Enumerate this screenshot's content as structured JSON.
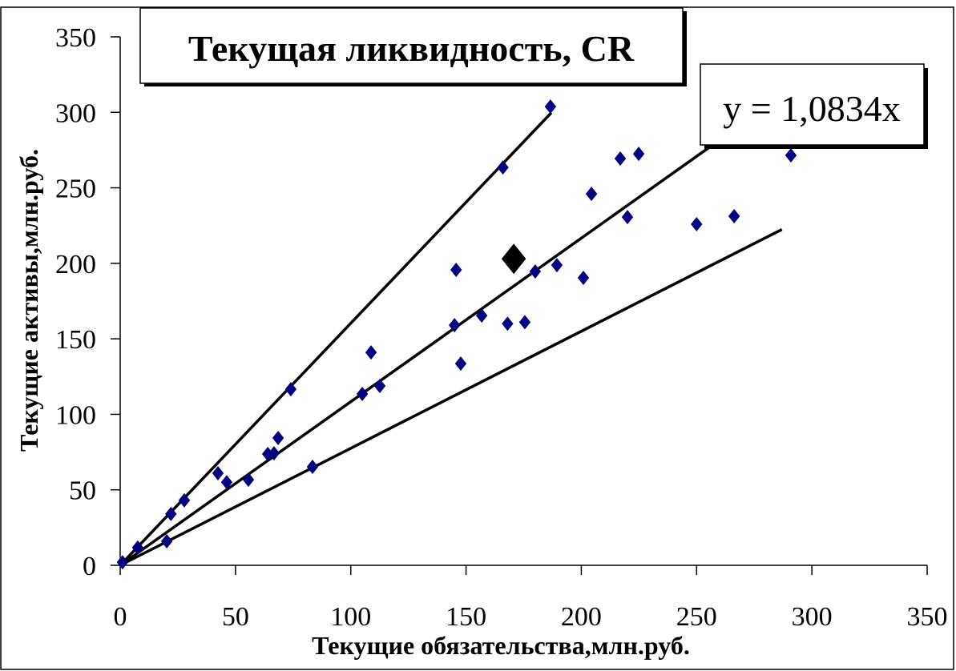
{
  "chart_data": {
    "type": "scatter",
    "title": "Текущая ликвидность, CR",
    "xlabel": "Текущие обязательства,млн.руб.",
    "ylabel": "Текущие активы,млн.руб.",
    "xlim": [
      0,
      350
    ],
    "ylim": [
      0,
      350
    ],
    "xticks": [
      "0",
      "50",
      "100",
      "150",
      "200",
      "250",
      "300",
      "350"
    ],
    "yticks": [
      "0",
      "50",
      "100",
      "150",
      "200",
      "250",
      "300",
      "350"
    ],
    "grid": false,
    "point_color": "#000080",
    "points": [
      [
        1,
        2
      ],
      [
        7.6,
        11.7
      ],
      [
        20.2,
        15.9
      ],
      [
        22,
        34
      ],
      [
        27.8,
        43
      ],
      [
        42.4,
        61
      ],
      [
        46.2,
        55
      ],
      [
        55.6,
        56.7
      ],
      [
        64,
        73.7
      ],
      [
        66.7,
        74.2
      ],
      [
        68.5,
        84.3
      ],
      [
        74,
        116.6
      ],
      [
        83.4,
        65.2
      ],
      [
        105,
        113.5
      ],
      [
        108.8,
        141
      ],
      [
        112.6,
        118.8
      ],
      [
        145,
        159
      ],
      [
        145.7,
        195.7
      ],
      [
        147.7,
        133.6
      ],
      [
        156.8,
        165.4
      ],
      [
        166,
        263.5
      ],
      [
        168,
        160
      ],
      [
        175.5,
        161
      ],
      [
        180,
        194.6
      ],
      [
        186.6,
        303.8
      ],
      [
        189.4,
        198.8
      ],
      [
        200.9,
        190.4
      ],
      [
        204.4,
        246
      ],
      [
        216.9,
        269.4
      ],
      [
        220,
        230.6
      ],
      [
        224.9,
        272.5
      ],
      [
        250,
        225.9
      ],
      [
        266.3,
        231.2
      ],
      [
        290.9,
        271.5
      ]
    ],
    "highlight_point": [
      170.7,
      203
    ],
    "lines": [
      {
        "name": "upper",
        "slope": 1.603,
        "x_end": 187
      },
      {
        "name": "trend",
        "slope": 1.0834,
        "x_end": 262
      },
      {
        "name": "lower",
        "slope": 0.775,
        "x_end": 287
      }
    ],
    "trend_equation": "y = 1,0834x"
  }
}
